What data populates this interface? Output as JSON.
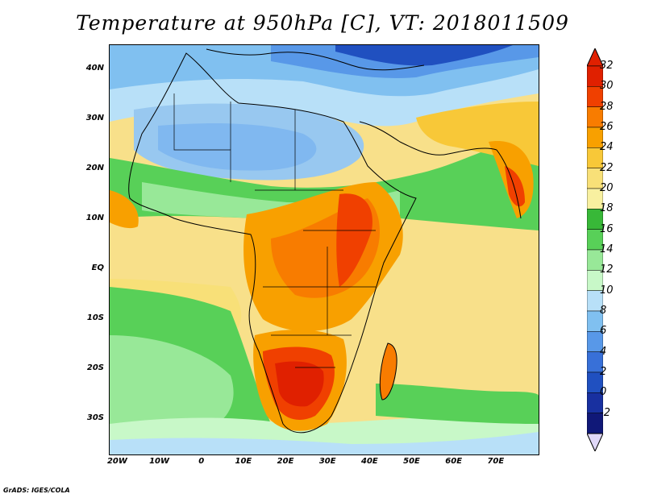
{
  "title": "Temperature at 950hPa [C], VT: 2018011509",
  "credit": "GrADS: IGES/COLA",
  "lat_labels": [
    "40N",
    "30N",
    "20N",
    "10N",
    "EQ",
    "10S",
    "20S",
    "30S"
  ],
  "lat_values": [
    40,
    30,
    20,
    10,
    0,
    -10,
    -20,
    -30
  ],
  "lon_labels": [
    "20W",
    "10W",
    "0",
    "10E",
    "20E",
    "30E",
    "40E",
    "50E",
    "60E",
    "70E"
  ],
  "lon_values": [
    -20,
    -10,
    0,
    10,
    20,
    30,
    40,
    50,
    60,
    70
  ],
  "map_extent": {
    "lon": [
      -22,
      80
    ],
    "lat": [
      -37,
      45
    ]
  },
  "colorbar": {
    "labels": [
      "32",
      "30",
      "28",
      "26",
      "24",
      "22",
      "20",
      "18",
      "16",
      "14",
      "12",
      "10",
      "8",
      "6",
      "4",
      "2",
      "0",
      "-2"
    ],
    "colors": [
      "#e02000",
      "#f04000",
      "#f87c00",
      "#f8a000",
      "#f8c838",
      "#f8e078",
      "#f8f0a0",
      "#38b838",
      "#58d058",
      "#98e898",
      "#c8f8c8",
      "#b8e0f8",
      "#80c0f0",
      "#5898e8",
      "#3870d8",
      "#2050c0",
      "#1830a0",
      "#101878"
    ],
    "top_arrow_color": "#e02000",
    "bottom_arrow_color": "#e0d8f8"
  }
}
